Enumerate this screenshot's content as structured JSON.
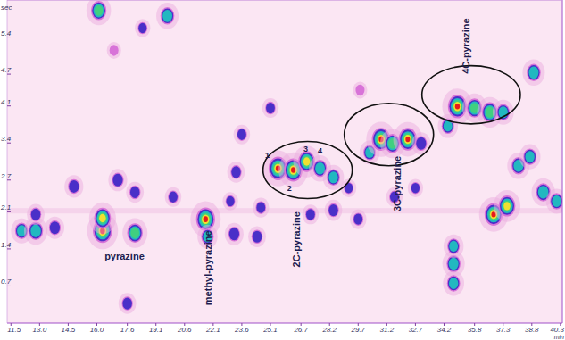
{
  "chart_data": {
    "type": "scatter",
    "x_label": "min",
    "y_label": "sec",
    "xlim": [
      11.3,
      40.4
    ],
    "ylim": [
      0,
      6.1
    ],
    "xticks": [
      11.5,
      {
        "value": 13,
        "label": "13.0"
      },
      14.5,
      {
        "value": 16,
        "label": "16.0"
      },
      17.6,
      19.1,
      20.6,
      22.1,
      23.6,
      25.1,
      26.7,
      28.2,
      29.7,
      31.2,
      32.7,
      34.2,
      35.8,
      37.3,
      38.8,
      40.3
    ],
    "yticks": [
      0.7,
      1.4,
      2.1,
      2.7,
      3.4,
      4.1,
      4.7,
      5.4
    ],
    "x": [
      16.1,
      19.7,
      12.06,
      12.8,
      12.8,
      13.8,
      14.8,
      16.3,
      16.3,
      17.1,
      18.0,
      18.0,
      20.0,
      21.7,
      21.8,
      23.2,
      23.0,
      23.3,
      23.6,
      24.4,
      25.1,
      24.6,
      25.5,
      26.3,
      27.0,
      27.7,
      28.4,
      27.2,
      28.4,
      29.2,
      29.7,
      30.3,
      30.9,
      31.5,
      32.3,
      33.0,
      31.6,
      32.7,
      34.4,
      34.9,
      35.8,
      36.6,
      37.3,
      34.7,
      34.7,
      34.7,
      36.8,
      37.5,
      38.1,
      38.7,
      38.9,
      39.4,
      40.1,
      17.6,
      18.4,
      16.9,
      29.8
    ],
    "values": [
      5.9,
      5.8,
      1.74,
      1.74,
      2.05,
      1.8,
      2.58,
      1.74,
      1.98,
      2.7,
      1.7,
      2.47,
      2.38,
      1.96,
      1.63,
      1.68,
      2.3,
      2.85,
      3.56,
      1.63,
      4.06,
      2.18,
      2.92,
      2.89,
      3.05,
      2.92,
      2.75,
      2.05,
      2.13,
      2.55,
      1.96,
      3.22,
      3.47,
      3.39,
      3.47,
      3.39,
      2.38,
      2.55,
      3.72,
      4.09,
      4.06,
      3.98,
      3.98,
      1.12,
      0.75,
      1.45,
      2.05,
      2.21,
      2.97,
      3.14,
      4.73,
      2.47,
      2.3,
      0.37,
      5.57,
      5.15,
      4.4
    ],
    "intensity": [
      70,
      60,
      55,
      65,
      40,
      45,
      45,
      98,
      80,
      45,
      72,
      40,
      35,
      95,
      50,
      45,
      30,
      40,
      35,
      40,
      35,
      35,
      95,
      92,
      80,
      60,
      55,
      35,
      40,
      30,
      35,
      50,
      92,
      70,
      90,
      45,
      35,
      30,
      50,
      95,
      70,
      75,
      55,
      60,
      55,
      50,
      90,
      80,
      60,
      55,
      60,
      65,
      55,
      40,
      30,
      25,
      25
    ],
    "annotations": [
      {
        "text": "pyrazine",
        "x": 17.45,
        "y": 1.2
      },
      {
        "text": "1",
        "x": 24.94,
        "y": 3.12
      },
      {
        "text": "2",
        "x": 26.1,
        "y": 2.5
      },
      {
        "text": "3",
        "x": 26.95,
        "y": 3.24
      },
      {
        "text": "4",
        "x": 27.7,
        "y": 3.2
      }
    ],
    "vertical_annotations": [
      {
        "text": "methyl-pyrazine",
        "x": 21.9,
        "y": 1.04
      },
      {
        "text": "2C-pyrazine",
        "x": 26.5,
        "y": 1.58
      },
      {
        "text": "3C-pyrazine",
        "x": 31.78,
        "y": 2.63
      },
      {
        "text": "4C-pyrazine",
        "x": 35.4,
        "y": 5.23
      }
    ],
    "regions": [
      {
        "x": 27.05,
        "y": 2.89,
        "dx": 2.34,
        "dy": 0.54
      },
      {
        "x": 31.31,
        "y": 3.56,
        "dx": 2.34,
        "dy": 0.59
      },
      {
        "x": 35.62,
        "y": 4.31,
        "dx": 2.58,
        "dy": 0.55
      }
    ]
  }
}
